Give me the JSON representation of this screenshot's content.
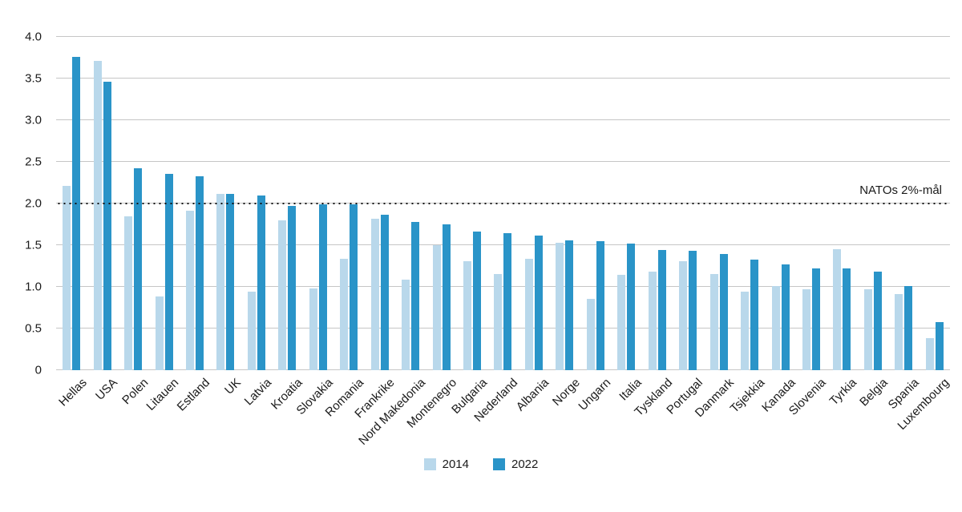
{
  "chart_data": {
    "type": "bar",
    "title": "",
    "xlabel": "",
    "ylabel": "",
    "ylim": [
      0,
      4.0
    ],
    "ytick_labels": [
      "4.0",
      "3.5",
      "3.0",
      "2.5",
      "2.0",
      "1.5",
      "1.0",
      "0.5",
      "0"
    ],
    "grid": true,
    "legend_position": "bottom",
    "annotation": "NATOs 2%-mål",
    "target_value": 2.0,
    "categories": [
      "Hellas",
      "USA",
      "Polen",
      "Litauen",
      "Estland",
      "UK",
      "Latvia",
      "Kroatia",
      "Slovakia",
      "Romania",
      "Frankrike",
      "Nord Makedonia",
      "Montenegro",
      "Bulgaria",
      "Nederland",
      "Albania",
      "Norge",
      "Ungarn",
      "Italia",
      "Tyskland",
      "Portugal",
      "Danmark",
      "Tsjekkia",
      "Kanada",
      "Slovenia",
      "Tyrkia",
      "Belgia",
      "Spania",
      "Luxembourg"
    ],
    "series": [
      {
        "name": "2014",
        "color": "#b9d8eb",
        "values": [
          2.21,
          3.71,
          1.85,
          0.88,
          1.91,
          2.12,
          0.94,
          1.8,
          0.98,
          1.34,
          1.82,
          1.09,
          1.5,
          1.31,
          1.15,
          1.34,
          1.53,
          0.86,
          1.14,
          1.18,
          1.31,
          1.15,
          0.94,
          1.01,
          0.97,
          1.45,
          0.97,
          0.91,
          0.38
        ]
      },
      {
        "name": "2022",
        "color": "#2a94c8",
        "values": [
          3.76,
          3.46,
          2.42,
          2.36,
          2.33,
          2.12,
          2.1,
          1.97,
          1.99,
          1.99,
          1.87,
          1.78,
          1.75,
          1.66,
          1.64,
          1.62,
          1.56,
          1.55,
          1.52,
          1.44,
          1.43,
          1.39,
          1.33,
          1.27,
          1.22,
          1.22,
          1.18,
          1.01,
          0.58
        ]
      }
    ]
  },
  "colors": {
    "grid": "#c6c6c6",
    "target_line": "#121212",
    "text": "#1a1a1a",
    "background": "#ffffff"
  }
}
